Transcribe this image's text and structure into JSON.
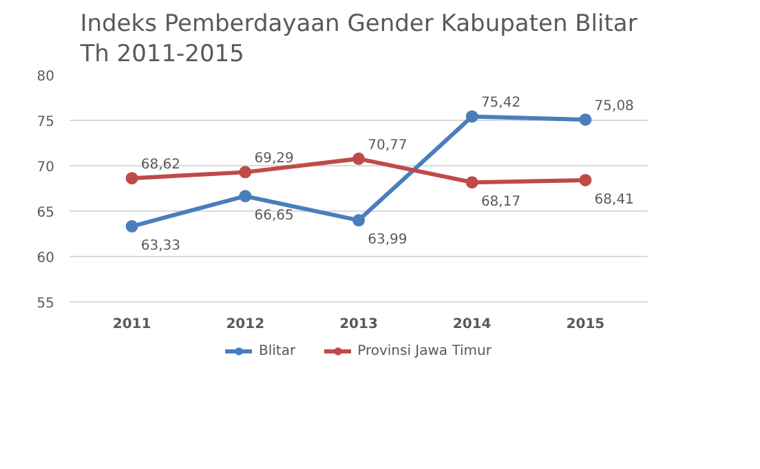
{
  "chart_data": {
    "type": "line",
    "title": "Indeks Pemberdayaan Gender Kabupaten Blitar\nTh 2011-2015",
    "categories": [
      "2011",
      "2012",
      "2013",
      "2014",
      "2015"
    ],
    "series": [
      {
        "name": "Blitar",
        "color": "#4a7ebb",
        "values": [
          63.33,
          66.65,
          63.99,
          75.42,
          75.08
        ],
        "value_labels": [
          "63,33",
          "66,65",
          "63,99",
          "75,42",
          "75,08"
        ]
      },
      {
        "name": "Provinsi Jawa Timur",
        "color": "#be4b48",
        "values": [
          68.62,
          69.29,
          70.77,
          68.17,
          68.41
        ],
        "value_labels": [
          "68,62",
          "69,29",
          "70,77",
          "68,17",
          "68,41"
        ]
      }
    ],
    "ylim": [
      55,
      80
    ],
    "yticks": [
      55,
      60,
      65,
      70,
      75,
      80
    ],
    "grid": "y",
    "legend": "bottom",
    "marker": "circle",
    "line_style": "solid"
  }
}
